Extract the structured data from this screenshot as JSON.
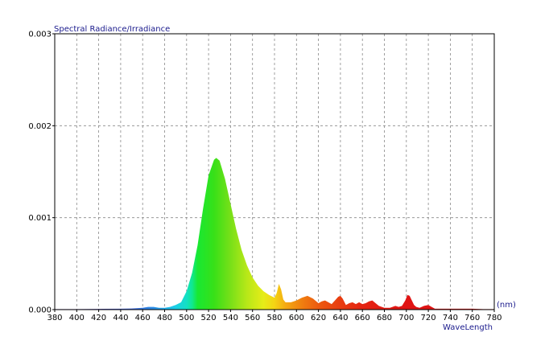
{
  "chart_data": {
    "type": "area",
    "title": "Spectral Radiance/Irradiance",
    "xlabel": "WaveLength",
    "x_unit": "(nm)",
    "ylabel": "",
    "xlim": [
      380,
      780
    ],
    "ylim": [
      0,
      0.003
    ],
    "grid": true,
    "x_ticks": [
      "380",
      "400",
      "420",
      "440",
      "460",
      "480",
      "500",
      "520",
      "540",
      "560",
      "580",
      "600",
      "620",
      "640",
      "660",
      "680",
      "700",
      "720",
      "740",
      "760",
      "780"
    ],
    "y_ticks": [
      "0.000",
      "0.001",
      "0.002",
      "0.003"
    ],
    "series": [
      {
        "x": [
          380,
          400,
          420,
          440,
          450,
          460,
          465,
          470,
          475,
          480,
          485,
          490,
          495,
          500,
          505,
          510,
          515,
          520,
          525,
          527,
          530,
          535,
          540,
          545,
          550,
          555,
          560,
          565,
          570,
          575,
          580,
          582,
          584,
          586,
          588,
          590,
          595,
          600,
          605,
          610,
          615,
          620,
          623,
          626,
          629,
          632,
          635,
          638,
          640,
          642,
          645,
          648,
          651,
          654,
          657,
          660,
          663,
          666,
          669,
          672,
          675,
          680,
          685,
          690,
          693,
          696,
          699,
          701,
          703,
          705,
          707,
          709,
          712,
          716,
          720,
          723,
          726,
          730,
          740,
          750,
          760,
          770,
          780
        ],
        "y": [
          5e-06,
          5e-06,
          8e-06,
          1e-05,
          1.2e-05,
          2e-05,
          3e-05,
          3e-05,
          2e-05,
          2e-05,
          3e-05,
          5e-05,
          8e-05,
          0.0002,
          0.0004,
          0.0007,
          0.0011,
          0.00146,
          0.00163,
          0.00165,
          0.00162,
          0.00142,
          0.00115,
          0.00088,
          0.00065,
          0.00048,
          0.00035,
          0.00026,
          0.0002,
          0.00016,
          0.00013,
          0.00018,
          0.00028,
          0.00022,
          0.00011,
          8e-05,
          8e-05,
          0.0001,
          0.00013,
          0.00015,
          0.00012,
          7e-05,
          9e-05,
          0.0001,
          8e-05,
          6e-05,
          0.0001,
          0.00014,
          0.00015,
          0.00012,
          5e-05,
          7e-05,
          8e-05,
          6e-05,
          8e-05,
          6e-05,
          7e-05,
          9e-05,
          0.0001,
          7e-05,
          4e-05,
          2e-05,
          2e-05,
          4e-05,
          3e-05,
          4e-05,
          0.0001,
          0.00016,
          0.00015,
          0.0001,
          5e-05,
          3e-05,
          2e-05,
          4e-05,
          5e-05,
          3e-05,
          1e-05,
          1e-05,
          1e-05,
          1e-05,
          1e-05,
          5e-06,
          5e-06
        ]
      }
    ]
  }
}
